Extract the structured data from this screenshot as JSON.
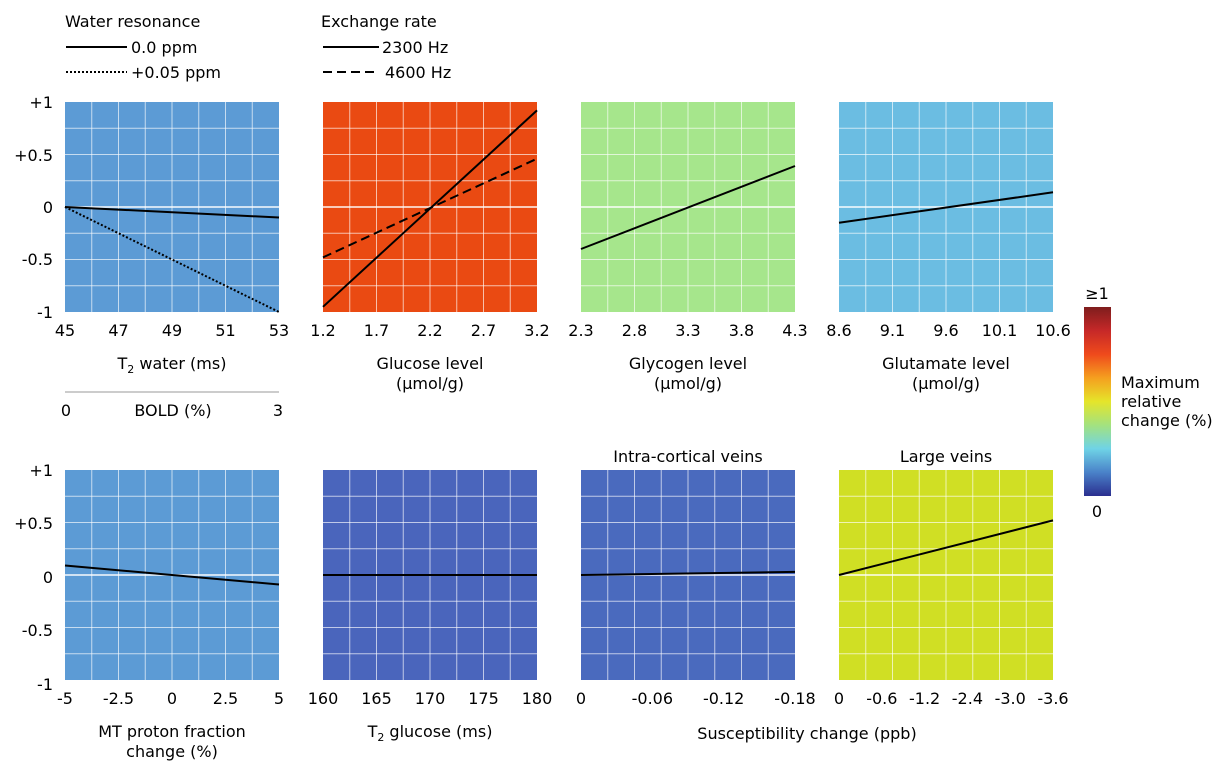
{
  "legends": {
    "water": {
      "title": "Water resonance",
      "entries": [
        {
          "label": "0.0 ppm",
          "style": "solid"
        },
        {
          "label": "+0.05 ppm",
          "style": "dotted"
        }
      ]
    },
    "exchange": {
      "title": "Exchange rate",
      "entries": [
        {
          "label": "2300 Hz",
          "style": "solid"
        },
        {
          "label": "4600 Hz",
          "style": "dashed"
        }
      ]
    }
  },
  "ytick_labels": [
    "+1",
    "+0.5",
    "0",
    "-0.5",
    "-1"
  ],
  "colorbar": {
    "top_label": "≥1",
    "bottom_label": "0",
    "title_lines": [
      "Maximum",
      "relative",
      "change (%)"
    ],
    "colors": [
      "#7f1d1d",
      "#c62828",
      "#ef4a1c",
      "#f59f1f",
      "#e5e52a",
      "#a3e27f",
      "#6fd3e6",
      "#4a82c9",
      "#2b2f8f"
    ]
  },
  "secondary_axis": {
    "under_panel": 0,
    "label": "BOLD (%)",
    "tick_labels": [
      "0",
      "3"
    ]
  },
  "shared_xlabel": "Susceptibility change (ppb)",
  "chart_data": [
    {
      "type": "line",
      "title": "",
      "bg": "#5c9bd5",
      "xlabel_lines": [
        "T",
        "2",
        " water (ms)"
      ],
      "xlabel_subscript": true,
      "xticks": [
        "45",
        "47",
        "49",
        "51",
        "53"
      ],
      "xlim": [
        45,
        53
      ],
      "ylim": [
        -1,
        1
      ],
      "series": [
        {
          "name": "0.0 ppm",
          "style": "solid",
          "x": [
            45,
            53
          ],
          "y": [
            0,
            -0.1
          ]
        },
        {
          "name": "+0.05 ppm",
          "style": "dotted",
          "x": [
            45,
            53
          ],
          "y": [
            0,
            -1
          ]
        }
      ]
    },
    {
      "type": "line",
      "title": "",
      "bg": "#ea4a12",
      "xlabel_lines": [
        "Glucose level",
        "(µmol/g)"
      ],
      "xticks": [
        "1.2",
        "1.7",
        "2.2",
        "2.7",
        "3.2"
      ],
      "xlim": [
        1.2,
        3.2
      ],
      "ylim": [
        -1,
        1
      ],
      "series": [
        {
          "name": "2300 Hz",
          "style": "solid",
          "x": [
            1.2,
            3.2
          ],
          "y": [
            -0.95,
            0.92
          ]
        },
        {
          "name": "4600 Hz",
          "style": "dashed",
          "x": [
            1.2,
            3.2
          ],
          "y": [
            -0.48,
            0.46
          ]
        }
      ]
    },
    {
      "type": "line",
      "title": "",
      "bg": "#a6e68c",
      "xlabel_lines": [
        "Glycogen level",
        "(µmol/g)"
      ],
      "xticks": [
        "2.3",
        "2.8",
        "3.3",
        "3.8",
        "4.3"
      ],
      "xlim": [
        2.3,
        4.3
      ],
      "ylim": [
        -1,
        1
      ],
      "series": [
        {
          "style": "solid",
          "x": [
            2.3,
            4.3
          ],
          "y": [
            -0.4,
            0.39
          ]
        }
      ]
    },
    {
      "type": "line",
      "title": "",
      "bg": "#6bbde2",
      "xlabel_lines": [
        "Glutamate level",
        "(µmol/g)"
      ],
      "xticks": [
        "8.6",
        "9.1",
        "9.6",
        "10.1",
        "10.6"
      ],
      "xlim": [
        8.6,
        10.6
      ],
      "ylim": [
        -1,
        1
      ],
      "series": [
        {
          "style": "solid",
          "x": [
            8.6,
            10.6
          ],
          "y": [
            -0.15,
            0.14
          ]
        }
      ]
    },
    {
      "type": "line",
      "title": "",
      "bg": "#5c9bd5",
      "xlabel_lines": [
        "MT proton fraction",
        "change (%)"
      ],
      "xticks": [
        "-5",
        "-2.5",
        "0",
        "2.5",
        "5"
      ],
      "xlim": [
        -5,
        5
      ],
      "ylim": [
        -1,
        1
      ],
      "series": [
        {
          "style": "solid",
          "x": [
            -5,
            5
          ],
          "y": [
            0.09,
            -0.09
          ]
        }
      ]
    },
    {
      "type": "line",
      "title": "",
      "bg": "#4a65bc",
      "xlabel_lines": [
        "T",
        "2",
        " glucose (ms)"
      ],
      "xlabel_subscript": true,
      "xticks": [
        "160",
        "165",
        "170",
        "175",
        "180"
      ],
      "xlim": [
        160,
        180
      ],
      "ylim": [
        -1,
        1
      ],
      "series": [
        {
          "style": "solid",
          "x": [
            160,
            180
          ],
          "y": [
            0,
            0
          ]
        }
      ]
    },
    {
      "type": "line",
      "title": "Intra-cortical veins",
      "bg": "#4a6abe",
      "xlabel_lines": [],
      "xticks": [
        "0",
        "-0.06",
        "-0.12",
        "-0.18"
      ],
      "xlim": [
        0,
        -0.18
      ],
      "ylim": [
        -1,
        1
      ],
      "series": [
        {
          "style": "solid",
          "x": [
            0,
            -0.18
          ],
          "y": [
            0,
            0.03
          ]
        }
      ]
    },
    {
      "type": "line",
      "title": "Large veins",
      "bg": "#d0df24",
      "xlabel_lines": [],
      "xticks": [
        "0",
        "-0.6",
        "-1.2",
        "-2.4",
        "-3.0",
        "-3.6"
      ],
      "xlim": [
        0,
        -3.6
      ],
      "ylim": [
        -1,
        1
      ],
      "series": [
        {
          "style": "solid",
          "x": [
            0,
            -3.6
          ],
          "y": [
            0,
            0.52
          ]
        }
      ]
    }
  ]
}
